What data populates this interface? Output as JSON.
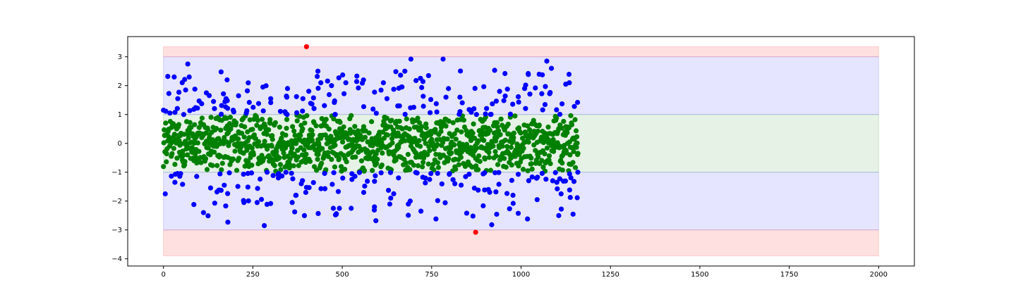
{
  "chart_data": {
    "type": "scatter",
    "title": "",
    "xlabel": "",
    "ylabel": "",
    "xlim": [
      -100,
      2100
    ],
    "ylim": [
      -4.25,
      3.7
    ],
    "x_ticks": [
      0,
      250,
      500,
      750,
      1000,
      1250,
      1500,
      1750,
      2000
    ],
    "y_ticks": [
      -4,
      -3,
      -2,
      -1,
      0,
      1,
      2,
      3
    ],
    "x_tick_labels": [
      "0",
      "250",
      "500",
      "750",
      "1000",
      "1250",
      "1500",
      "1750",
      "2000"
    ],
    "y_tick_labels": [
      "−4",
      "−3",
      "−2",
      "−1",
      "0",
      "1",
      "2",
      "3"
    ],
    "grid": false,
    "bands": [
      {
        "y0": -1,
        "y1": 1,
        "x0": 0,
        "x1": 2000,
        "color": "#008000",
        "opacity": 0.1
      },
      {
        "y0": 1,
        "y1": 3,
        "x0": 0,
        "x1": 2000,
        "color": "#0000ff",
        "opacity": 0.1
      },
      {
        "y0": -3,
        "y1": -1,
        "x0": 0,
        "x1": 2000,
        "color": "#0000ff",
        "opacity": 0.1
      },
      {
        "y0": 3,
        "y1": 3.35,
        "x0": 0,
        "x1": 2000,
        "color": "#ff0000",
        "opacity": 0.12
      },
      {
        "y0": -3.9,
        "y1": -3,
        "x0": 0,
        "x1": 2000,
        "color": "#ff0000",
        "opacity": 0.12
      }
    ],
    "point_count": 1160,
    "x_range": [
      0,
      1159
    ],
    "distribution": "standard normal noise around 0 (values in [-1,1] green, |y| in (1,3] blue, |y|>3 red)",
    "colors": {
      "inside_1": "#008000",
      "between_1_3": "#0000ff",
      "outside_3": "#ff0000"
    },
    "series": [
      {
        "color": "#ff0000",
        "points": [
          [
            400,
            3.35
          ],
          [
            873,
            -3.08
          ]
        ]
      },
      {
        "color": "#0000ff",
        "points": [
          [
            0,
            1.15
          ],
          [
            5,
            -1.75
          ],
          [
            12,
            2.32
          ],
          [
            18,
            1.05
          ],
          [
            30,
            2.3
          ],
          [
            32,
            -1.35
          ],
          [
            40,
            1.55
          ],
          [
            48,
            -1.05
          ],
          [
            62,
            1.85
          ],
          [
            68,
            2.75
          ],
          [
            72,
            2.3
          ],
          [
            85,
            -2.12
          ],
          [
            95,
            1.22
          ],
          [
            112,
            -2.4
          ],
          [
            120,
            1.75
          ],
          [
            140,
            1.45
          ],
          [
            155,
            -1.62
          ],
          [
            170,
            -1.45
          ],
          [
            178,
            2.2
          ],
          [
            180,
            -2.73
          ],
          [
            195,
            1.15
          ],
          [
            210,
            1.65
          ],
          [
            225,
            -2.05
          ],
          [
            240,
            1.42
          ],
          [
            262,
            -2.05
          ],
          [
            278,
            1.95
          ],
          [
            282,
            -2.85
          ],
          [
            300,
            1.55
          ],
          [
            322,
            -1.05
          ],
          [
            345,
            1.6
          ],
          [
            360,
            -2.05
          ],
          [
            372,
            1.62
          ],
          [
            390,
            1.55
          ],
          [
            398,
            -1.7
          ],
          [
            430,
            2.32
          ],
          [
            440,
            2.1
          ],
          [
            470,
            2.0
          ],
          [
            472,
            -1.42
          ],
          [
            475,
            -2.25
          ],
          [
            492,
            -2.25
          ],
          [
            505,
            1.72
          ],
          [
            510,
            2.1
          ],
          [
            525,
            -2.25
          ],
          [
            545,
            1.92
          ],
          [
            560,
            -1.7
          ],
          [
            590,
            -2.2
          ],
          [
            594,
            -2.68
          ],
          [
            615,
            2.1
          ],
          [
            625,
            1.55
          ],
          [
            660,
            1.3
          ],
          [
            675,
            2.5
          ],
          [
            690,
            -2.0
          ],
          [
            692,
            2.92
          ],
          [
            700,
            1.25
          ],
          [
            720,
            -2.35
          ],
          [
            762,
            -2.62
          ],
          [
            782,
            2.92
          ],
          [
            790,
            1.6
          ],
          [
            800,
            -1.05
          ],
          [
            848,
            -2.42
          ],
          [
            860,
            1.15
          ],
          [
            880,
            -1.62
          ],
          [
            918,
            -2.82
          ],
          [
            940,
            1.8
          ],
          [
            955,
            2.42
          ],
          [
            978,
            -2.08
          ],
          [
            1010,
            1.9
          ],
          [
            1018,
            -2.62
          ],
          [
            1020,
            2.42
          ],
          [
            1040,
            1.92
          ],
          [
            1045,
            -1.95
          ],
          [
            1072,
            2.85
          ],
          [
            1085,
            2.6
          ],
          [
            1100,
            -1.35
          ],
          [
            1112,
            -1.75
          ],
          [
            1125,
            2.05
          ],
          [
            1135,
            2.1
          ],
          [
            1148,
            -1.32
          ],
          [
            1158,
            1.42
          ]
        ]
      }
    ]
  }
}
